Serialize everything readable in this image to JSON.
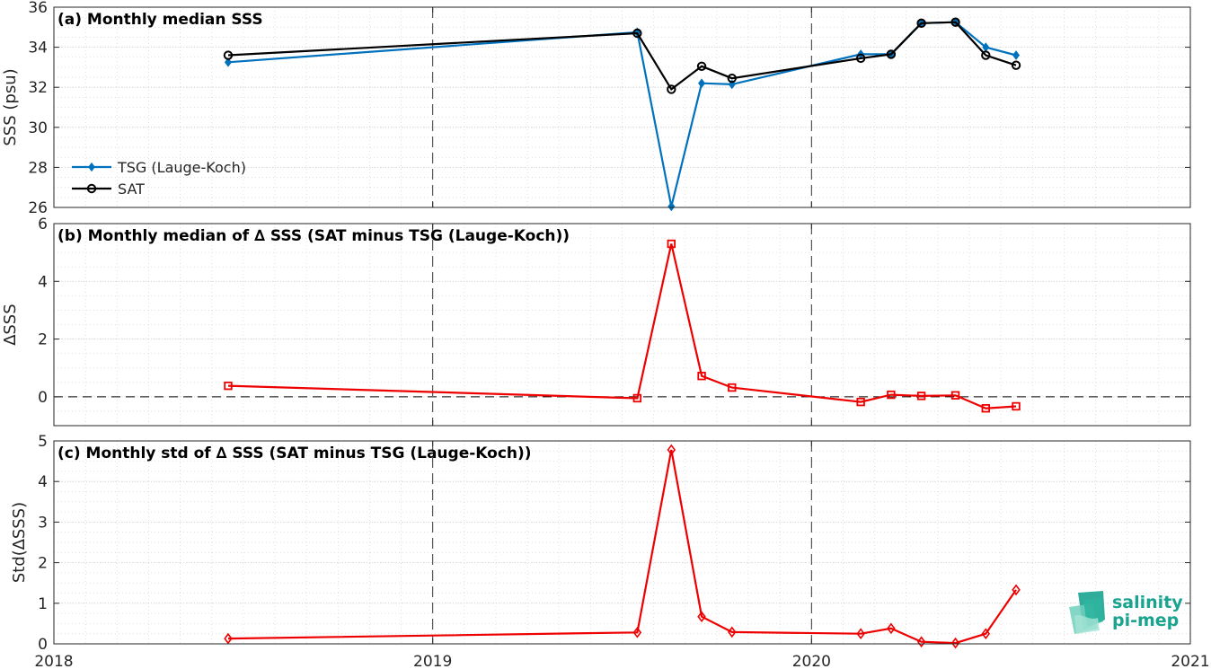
{
  "chart_data": [
    {
      "type": "line",
      "title": "(a) Monthly median SSS",
      "ylabel": "SSS (psu)",
      "xlim": [
        2018,
        2021
      ],
      "ylim": [
        26,
        36
      ],
      "yticks": [
        26,
        28,
        30,
        32,
        34,
        36
      ],
      "x_ticks": [
        "2018",
        "2019",
        "2020",
        "2021"
      ],
      "legend_position": "center-left",
      "x": [
        2018.46,
        2019.54,
        2019.63,
        2019.71,
        2019.79,
        2020.13,
        2020.21,
        2020.29,
        2020.38,
        2020.46,
        2020.54
      ],
      "series": [
        {
          "name": "TSG (Lauge-Koch)",
          "color": "#0072BD",
          "marker": "diamond",
          "values": [
            33.25,
            34.75,
            26.05,
            32.2,
            32.15,
            33.65,
            33.65,
            35.2,
            35.25,
            34.0,
            33.6
          ]
        },
        {
          "name": "SAT",
          "color": "#000000",
          "marker": "circle",
          "values": [
            33.6,
            34.7,
            31.9,
            33.05,
            32.45,
            33.45,
            33.65,
            35.2,
            35.25,
            33.6,
            33.1
          ]
        }
      ]
    },
    {
      "type": "line",
      "title": "(b) Monthly median of ∆ SSS (SAT minus TSG (Lauge-Koch))",
      "ylabel": "∆SSS",
      "xlim": [
        2018,
        2021
      ],
      "ylim": [
        -1,
        6
      ],
      "yticks": [
        0,
        2,
        4,
        6
      ],
      "zero_line": true,
      "x": [
        2018.46,
        2019.54,
        2019.63,
        2019.71,
        2019.79,
        2020.13,
        2020.21,
        2020.29,
        2020.38,
        2020.46,
        2020.54
      ],
      "series": [
        {
          "color": "#EE0000",
          "marker": "square",
          "values": [
            0.38,
            -0.05,
            5.3,
            0.72,
            0.32,
            -0.18,
            0.07,
            0.03,
            0.05,
            -0.4,
            -0.33
          ]
        }
      ]
    },
    {
      "type": "line",
      "title": "(c) Monthly std of ∆ SSS (SAT minus TSG (Lauge-Koch))",
      "ylabel": "Std(∆SSS)",
      "xlim": [
        2018,
        2021
      ],
      "ylim": [
        0,
        5
      ],
      "yticks": [
        0,
        1,
        2,
        3,
        4,
        5
      ],
      "x": [
        2018.46,
        2019.54,
        2019.63,
        2019.71,
        2019.79,
        2020.13,
        2020.21,
        2020.29,
        2020.38,
        2020.46,
        2020.54
      ],
      "series": [
        {
          "color": "#EE0000",
          "marker": "diamond",
          "values": [
            0.13,
            0.28,
            4.78,
            0.67,
            0.29,
            0.25,
            0.38,
            0.05,
            0.02,
            0.25,
            1.33
          ]
        }
      ]
    }
  ],
  "logo": {
    "line1": "salinity",
    "line2": "pi-mep",
    "color": "#1aa38f"
  }
}
